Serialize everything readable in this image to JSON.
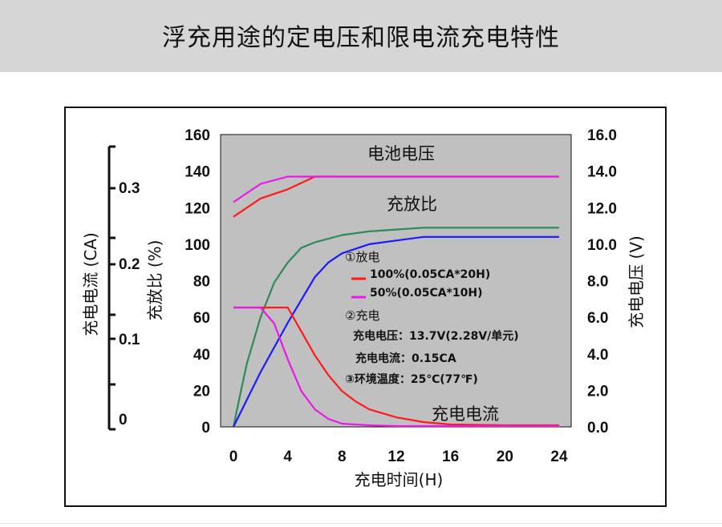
{
  "header": {
    "title": "浮充用途的定电压和限电流充电特性"
  },
  "chart_data": {
    "type": "line",
    "xlabel": "充电时间(H)",
    "xlim": [
      0,
      24
    ],
    "xticks": [
      "0",
      "4",
      "8",
      "12",
      "16",
      "20",
      "24"
    ],
    "ylabel_left_outer": "充电电流 (CA)",
    "yticks_left_outer": [
      "0.3",
      "0.2",
      "0.1",
      "0"
    ],
    "ylabel_left": "充放比 (%)",
    "ylim_left": [
      0,
      160
    ],
    "yticks_left": [
      "160",
      "140",
      "120",
      "100",
      "80",
      "60",
      "40",
      "20",
      "0"
    ],
    "ylabel_right": "充电电压 (V)",
    "ylim_right": [
      0,
      16
    ],
    "yticks_right": [
      "16.0",
      "14.0",
      "12.0",
      "10.0",
      "8.0",
      "6.0",
      "4.0",
      "2.0",
      "0.0"
    ],
    "curve_labels": {
      "voltage": "电池电压",
      "ratio": "充放比",
      "current": "充电电流"
    },
    "colors": {
      "series_100": "#ff1a1a",
      "series_50": "#e81ae8",
      "green": "#2e8b57",
      "blue": "#1a1aff",
      "plot_bg": "#c0c0c0"
    },
    "series": [
      {
        "name": "100%(0.05CA*20H)",
        "color": "#ff1a1a",
        "axis": "left_pct",
        "x": [
          0,
          2,
          4,
          6,
          8,
          24
        ],
        "y": [
          115,
          125,
          130,
          137,
          137,
          137
        ]
      },
      {
        "name": "50%(0.05CA*10H)",
        "color": "#e81ae8",
        "axis": "left_pct",
        "x": [
          0,
          2,
          4,
          6,
          8,
          24
        ],
        "y": [
          123,
          133,
          137,
          137,
          137,
          137
        ]
      },
      {
        "color": "#2e8b57",
        "axis": "left_pct",
        "x": [
          0,
          0.5,
          1,
          2,
          3,
          4,
          5,
          6,
          8,
          10,
          12,
          14,
          16,
          20,
          24
        ],
        "y": [
          0,
          18,
          35,
          60,
          79,
          90,
          98,
          101,
          105,
          107,
          108,
          109,
          109,
          109,
          109
        ]
      },
      {
        "color": "#1a1aff",
        "axis": "left_pct",
        "x": [
          0,
          2,
          4,
          6,
          7,
          8,
          10,
          12,
          14,
          16,
          20,
          24
        ],
        "y": [
          0,
          30,
          57,
          82,
          90,
          95,
          100,
          102,
          104,
          104,
          104,
          104
        ]
      },
      {
        "name": "100%(0.05CA*20H)",
        "color": "#ff1a1a",
        "axis": "left_outer_ca",
        "x": [
          0,
          2,
          4,
          5,
          6,
          7,
          8,
          9,
          10,
          12,
          14,
          16,
          20,
          24
        ],
        "y": [
          0.15,
          0.15,
          0.15,
          0.12,
          0.09,
          0.065,
          0.045,
          0.032,
          0.022,
          0.012,
          0.006,
          0.003,
          0.002,
          0.002
        ]
      },
      {
        "name": "50%(0.05CA*10H)",
        "color": "#e81ae8",
        "axis": "left_outer_ca",
        "x": [
          0,
          2,
          3,
          4,
          5,
          6,
          7,
          8,
          10,
          12,
          16,
          20,
          24
        ],
        "y": [
          0.15,
          0.15,
          0.13,
          0.085,
          0.045,
          0.022,
          0.01,
          0.004,
          0.002,
          0.001,
          0.001,
          0.001,
          0.001
        ]
      }
    ],
    "annotations": {
      "discharge": "①放电",
      "legend_100": "100%(0.05CA*20H)",
      "legend_50": "50%(0.05CA*10H)",
      "charge": "②充电",
      "voltage": "充电电压：13.7V(2.28V/单元)",
      "current": "充电电流：0.15CA",
      "temp": "③环境温度：25℃(77℉)"
    }
  }
}
